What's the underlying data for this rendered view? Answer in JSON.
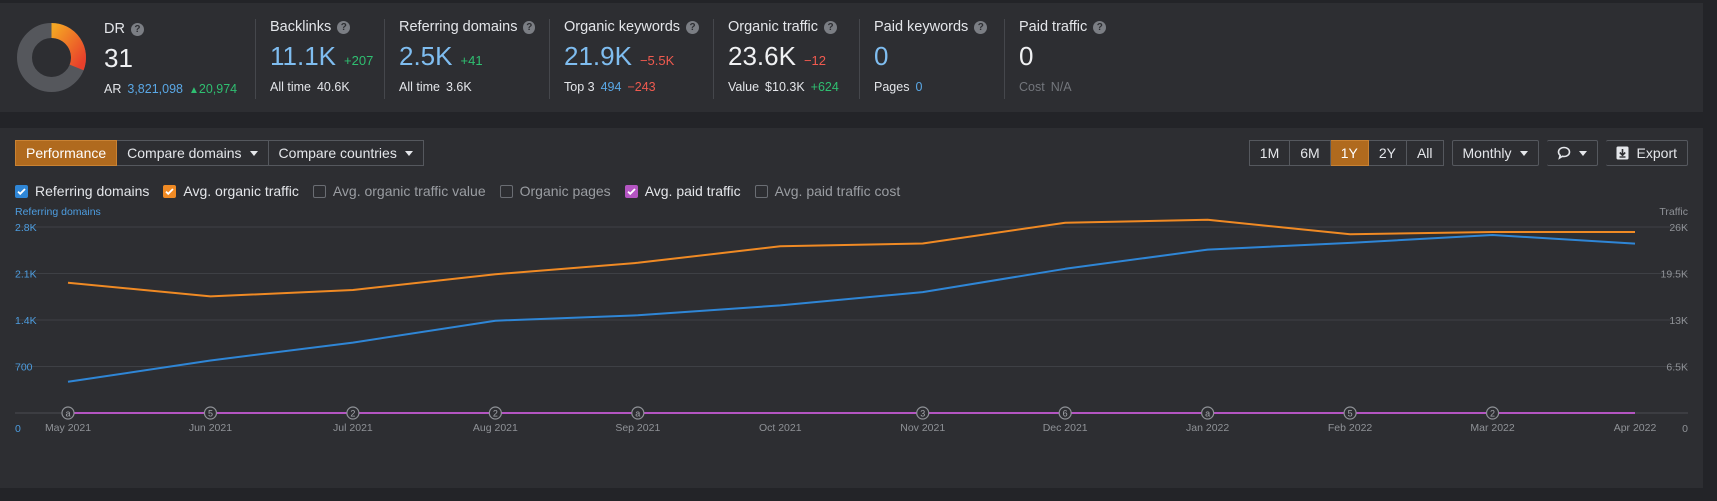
{
  "metrics": {
    "dr": {
      "label": "DR",
      "value": "31",
      "ar_label": "AR",
      "ar_value": "3,821,098",
      "ar_delta": "20,974",
      "donut_fill": 0.31
    },
    "backlinks": {
      "label": "Backlinks",
      "value": "11.1K",
      "delta": "+207",
      "sub_label": "All time",
      "sub_value": "40.6K"
    },
    "referring_domains": {
      "label": "Referring domains",
      "value": "2.5K",
      "delta": "+41",
      "sub_label": "All time",
      "sub_value": "3.6K"
    },
    "organic_keywords": {
      "label": "Organic keywords",
      "value": "21.9K",
      "delta": "−5.5K",
      "sub_label": "Top 3",
      "sub_value": "494",
      "sub_delta": "−243"
    },
    "organic_traffic": {
      "label": "Organic traffic",
      "value": "23.6K",
      "delta": "−12",
      "sub_label": "Value",
      "sub_value": "$10.3K",
      "sub_delta": "+624"
    },
    "paid_keywords": {
      "label": "Paid keywords",
      "value": "0",
      "sub_label": "Pages",
      "sub_value": "0"
    },
    "paid_traffic": {
      "label": "Paid traffic",
      "value": "0",
      "sub_label": "Cost",
      "sub_value": "N/A"
    }
  },
  "toolbar": {
    "tabs": [
      "Performance",
      "Compare domains",
      "Compare countries"
    ],
    "active_tab": "Performance",
    "ranges": [
      "1M",
      "6M",
      "1Y",
      "2Y",
      "All"
    ],
    "active_range": "1Y",
    "interval": "Monthly",
    "export_label": "Export"
  },
  "checkboxes": [
    {
      "label": "Referring domains",
      "checked": true,
      "color": "#2f86d6"
    },
    {
      "label": "Avg. organic traffic",
      "checked": true,
      "color": "#f08a24"
    },
    {
      "label": "Avg. organic traffic value",
      "checked": false
    },
    {
      "label": "Organic pages",
      "checked": false
    },
    {
      "label": "Avg. paid traffic",
      "checked": true,
      "color": "#b455c2"
    },
    {
      "label": "Avg. paid traffic cost",
      "checked": false
    }
  ],
  "chart_data": {
    "type": "line",
    "left_axis_title": "Referring domains",
    "right_axis_title": "Traffic",
    "x": [
      "May 2021",
      "Jun 2021",
      "Jul 2021",
      "Aug 2021",
      "Sep 2021",
      "Oct 2021",
      "Nov 2021",
      "Dec 2021",
      "Jan 2022",
      "Feb 2022",
      "Mar 2022",
      "Apr 2022"
    ],
    "left_ticks": [
      "0",
      "700",
      "1.4K",
      "2.1K",
      "2.8K"
    ],
    "right_ticks": [
      "0",
      "6.5K",
      "13K",
      "19.5K",
      "26K"
    ],
    "ylim_left": [
      0,
      2800
    ],
    "ylim_right": [
      0,
      26000
    ],
    "series": [
      {
        "name": "Referring domains",
        "axis": "left",
        "color": "#2f86d6",
        "values": [
          470,
          790,
          1060,
          1390,
          1470,
          1620,
          1820,
          2170,
          2460,
          2560,
          2680,
          2550
        ]
      },
      {
        "name": "Avg. organic traffic",
        "axis": "right",
        "color": "#f08a24",
        "values": [
          18200,
          16300,
          17200,
          19400,
          21000,
          23300,
          23700,
          26600,
          27000,
          25000,
          25300,
          25300
        ]
      },
      {
        "name": "Avg. paid traffic",
        "axis": "right",
        "color": "#b455c2",
        "values": [
          0,
          0,
          0,
          0,
          0,
          0,
          0,
          0,
          0,
          0,
          0,
          0
        ]
      }
    ],
    "annotations": [
      {
        "x": "May 2021",
        "label": "a"
      },
      {
        "x": "Jun 2021",
        "label": "5"
      },
      {
        "x": "Jul 2021",
        "label": "2"
      },
      {
        "x": "Aug 2021",
        "label": "2"
      },
      {
        "x": "Sep 2021",
        "label": "a"
      },
      {
        "x": "Nov 2021",
        "label": "3"
      },
      {
        "x": "Dec 2021",
        "label": "6"
      },
      {
        "x": "Jan 2022",
        "label": "a"
      },
      {
        "x": "Feb 2022",
        "label": "5"
      },
      {
        "x": "Mar 2022",
        "label": "2"
      }
    ],
    "grid": true
  }
}
